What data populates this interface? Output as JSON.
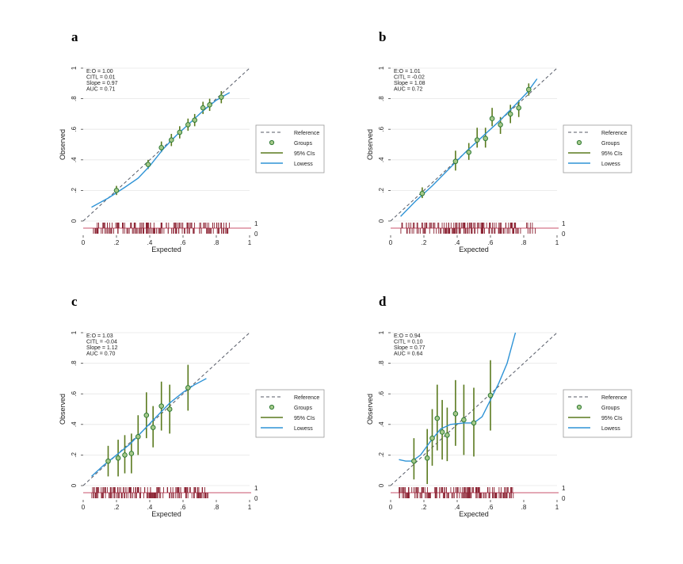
{
  "colors": {
    "reference": "#555a66",
    "groups_stroke": "#2f7a34",
    "groups_fill": "#a6c98a",
    "ci": "#5a7a1e",
    "lowess": "#2e93d6",
    "rug": "#8b2232",
    "baseline": "#c9536e",
    "grid": "#e6e6e6"
  },
  "legend": {
    "items": [
      {
        "label": "Reference",
        "kind": "reference"
      },
      {
        "label": "Groups",
        "kind": "groups"
      },
      {
        "label": "95% CIs",
        "kind": "ci"
      },
      {
        "label": "Lowess",
        "kind": "lowess"
      }
    ]
  },
  "chart_data": [
    {
      "panel": "a",
      "type": "scatter",
      "xlabel": "Expected",
      "ylabel": "Observed",
      "xlim": [
        0,
        1
      ],
      "ylim": [
        0,
        1
      ],
      "x_ticks": [
        "0",
        ".2",
        ".4",
        ".6",
        ".8",
        "1"
      ],
      "y_ticks": [
        "0",
        ".2",
        ".4",
        ".6",
        ".8",
        "1"
      ],
      "rug_labels": [
        "1",
        "0"
      ],
      "stats": [
        "E:O = 1.00",
        "CITL = 0.01",
        "Slope = 0.97",
        "AUC = 0.71"
      ],
      "groups": [
        {
          "x": 0.2,
          "y": 0.2,
          "lo": 0.17,
          "hi": 0.23
        },
        {
          "x": 0.39,
          "y": 0.37,
          "lo": 0.34,
          "hi": 0.4
        },
        {
          "x": 0.47,
          "y": 0.48,
          "lo": 0.45,
          "hi": 0.52
        },
        {
          "x": 0.53,
          "y": 0.53,
          "lo": 0.49,
          "hi": 0.57
        },
        {
          "x": 0.58,
          "y": 0.58,
          "lo": 0.54,
          "hi": 0.62
        },
        {
          "x": 0.63,
          "y": 0.63,
          "lo": 0.59,
          "hi": 0.67
        },
        {
          "x": 0.67,
          "y": 0.66,
          "lo": 0.62,
          "hi": 0.7
        },
        {
          "x": 0.72,
          "y": 0.74,
          "lo": 0.7,
          "hi": 0.78
        },
        {
          "x": 0.76,
          "y": 0.76,
          "lo": 0.72,
          "hi": 0.8
        },
        {
          "x": 0.83,
          "y": 0.81,
          "lo": 0.77,
          "hi": 0.85
        }
      ],
      "lowess": [
        [
          0.05,
          0.09
        ],
        [
          0.15,
          0.15
        ],
        [
          0.25,
          0.22
        ],
        [
          0.33,
          0.28
        ],
        [
          0.4,
          0.36
        ],
        [
          0.48,
          0.47
        ],
        [
          0.56,
          0.56
        ],
        [
          0.64,
          0.64
        ],
        [
          0.72,
          0.72
        ],
        [
          0.8,
          0.79
        ],
        [
          0.88,
          0.84
        ]
      ],
      "rug_range": [
        0.06,
        0.88
      ]
    },
    {
      "panel": "b",
      "type": "scatter",
      "xlabel": "Expected",
      "ylabel": "Observed",
      "xlim": [
        0,
        1
      ],
      "ylim": [
        0,
        1
      ],
      "x_ticks": [
        "0",
        ".2",
        ".4",
        ".6",
        ".8",
        "1"
      ],
      "y_ticks": [
        "0",
        ".2",
        ".4",
        ".6",
        ".8",
        "1"
      ],
      "rug_labels": [
        "1",
        "0"
      ],
      "stats": [
        "E:O = 1.01",
        "CITL = -0.02",
        "Slope = 1.08",
        "AUC = 0.72"
      ],
      "groups": [
        {
          "x": 0.19,
          "y": 0.18,
          "lo": 0.15,
          "hi": 0.22
        },
        {
          "x": 0.39,
          "y": 0.39,
          "lo": 0.33,
          "hi": 0.46
        },
        {
          "x": 0.47,
          "y": 0.45,
          "lo": 0.4,
          "hi": 0.51
        },
        {
          "x": 0.52,
          "y": 0.53,
          "lo": 0.48,
          "hi": 0.61
        },
        {
          "x": 0.57,
          "y": 0.54,
          "lo": 0.48,
          "hi": 0.61
        },
        {
          "x": 0.61,
          "y": 0.67,
          "lo": 0.62,
          "hi": 0.74
        },
        {
          "x": 0.66,
          "y": 0.63,
          "lo": 0.57,
          "hi": 0.68
        },
        {
          "x": 0.72,
          "y": 0.7,
          "lo": 0.64,
          "hi": 0.76
        },
        {
          "x": 0.77,
          "y": 0.74,
          "lo": 0.68,
          "hi": 0.79
        },
        {
          "x": 0.83,
          "y": 0.86,
          "lo": 0.82,
          "hi": 0.9
        }
      ],
      "lowess": [
        [
          0.06,
          0.03
        ],
        [
          0.15,
          0.13
        ],
        [
          0.25,
          0.23
        ],
        [
          0.35,
          0.34
        ],
        [
          0.45,
          0.45
        ],
        [
          0.55,
          0.55
        ],
        [
          0.65,
          0.65
        ],
        [
          0.75,
          0.76
        ],
        [
          0.82,
          0.84
        ],
        [
          0.88,
          0.93
        ]
      ],
      "rug_range": [
        0.06,
        0.88
      ]
    },
    {
      "panel": "c",
      "type": "scatter",
      "xlabel": "Expected",
      "ylabel": "Observed",
      "xlim": [
        0,
        1
      ],
      "ylim": [
        0,
        1
      ],
      "x_ticks": [
        "0",
        ".2",
        ".4",
        ".6",
        ".8",
        "1"
      ],
      "y_ticks": [
        "0",
        ".2",
        ".4",
        ".6",
        ".8",
        "1"
      ],
      "rug_labels": [
        "1",
        "0"
      ],
      "stats": [
        "E:O = 1.03",
        "CITL = -0.04",
        "Slope = 1.12",
        "AUC = 0.70"
      ],
      "groups": [
        {
          "x": 0.15,
          "y": 0.16,
          "lo": 0.06,
          "hi": 0.26
        },
        {
          "x": 0.21,
          "y": 0.18,
          "lo": 0.06,
          "hi": 0.3
        },
        {
          "x": 0.25,
          "y": 0.2,
          "lo": 0.08,
          "hi": 0.33
        },
        {
          "x": 0.29,
          "y": 0.21,
          "lo": 0.08,
          "hi": 0.34
        },
        {
          "x": 0.33,
          "y": 0.32,
          "lo": 0.2,
          "hi": 0.46
        },
        {
          "x": 0.38,
          "y": 0.46,
          "lo": 0.31,
          "hi": 0.61
        },
        {
          "x": 0.42,
          "y": 0.38,
          "lo": 0.25,
          "hi": 0.52
        },
        {
          "x": 0.47,
          "y": 0.52,
          "lo": 0.36,
          "hi": 0.68
        },
        {
          "x": 0.52,
          "y": 0.5,
          "lo": 0.34,
          "hi": 0.66
        },
        {
          "x": 0.63,
          "y": 0.64,
          "lo": 0.49,
          "hi": 0.79
        }
      ],
      "lowess": [
        [
          0.05,
          0.06
        ],
        [
          0.12,
          0.13
        ],
        [
          0.2,
          0.2
        ],
        [
          0.28,
          0.27
        ],
        [
          0.36,
          0.36
        ],
        [
          0.44,
          0.45
        ],
        [
          0.52,
          0.54
        ],
        [
          0.6,
          0.61
        ],
        [
          0.67,
          0.66
        ],
        [
          0.74,
          0.7
        ]
      ],
      "rug_range": [
        0.05,
        0.75
      ]
    },
    {
      "panel": "d",
      "type": "scatter",
      "xlabel": "Expected",
      "ylabel": "Observed",
      "xlim": [
        0,
        1
      ],
      "ylim": [
        0,
        1
      ],
      "x_ticks": [
        "0",
        ".2",
        ".4",
        ".6",
        ".8",
        "1"
      ],
      "y_ticks": [
        "0",
        ".2",
        ".4",
        ".6",
        ".8",
        "1"
      ],
      "rug_labels": [
        "1",
        "0"
      ],
      "stats": [
        "E:O = 0.94",
        "CITL = 0.10",
        "Slope = 0.77",
        "AUC = 0.64"
      ],
      "groups": [
        {
          "x": 0.14,
          "y": 0.16,
          "lo": 0.04,
          "hi": 0.31
        },
        {
          "x": 0.22,
          "y": 0.18,
          "lo": 0.01,
          "hi": 0.37
        },
        {
          "x": 0.25,
          "y": 0.31,
          "lo": 0.13,
          "hi": 0.5
        },
        {
          "x": 0.28,
          "y": 0.44,
          "lo": 0.23,
          "hi": 0.66
        },
        {
          "x": 0.31,
          "y": 0.35,
          "lo": 0.17,
          "hi": 0.56
        },
        {
          "x": 0.34,
          "y": 0.33,
          "lo": 0.16,
          "hi": 0.51
        },
        {
          "x": 0.39,
          "y": 0.47,
          "lo": 0.26,
          "hi": 0.69
        },
        {
          "x": 0.44,
          "y": 0.43,
          "lo": 0.2,
          "hi": 0.66
        },
        {
          "x": 0.5,
          "y": 0.41,
          "lo": 0.19,
          "hi": 0.64
        },
        {
          "x": 0.6,
          "y": 0.59,
          "lo": 0.36,
          "hi": 0.82
        }
      ],
      "lowess": [
        [
          0.05,
          0.17
        ],
        [
          0.09,
          0.16
        ],
        [
          0.13,
          0.16
        ],
        [
          0.18,
          0.2
        ],
        [
          0.24,
          0.29
        ],
        [
          0.3,
          0.37
        ],
        [
          0.36,
          0.4
        ],
        [
          0.44,
          0.41
        ],
        [
          0.5,
          0.41
        ],
        [
          0.55,
          0.45
        ],
        [
          0.6,
          0.56
        ],
        [
          0.65,
          0.67
        ],
        [
          0.7,
          0.8
        ],
        [
          0.75,
          1.0
        ]
      ],
      "rug_range": [
        0.05,
        0.75
      ]
    }
  ]
}
